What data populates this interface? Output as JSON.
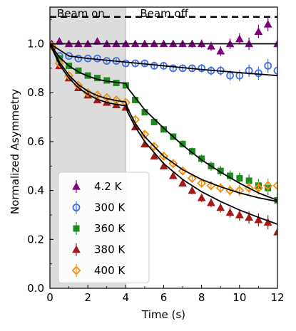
{
  "chart_data": {
    "type": "scatter",
    "xlabel": "Time (s)",
    "ylabel": "Normalized Asymmetry",
    "xlim": [
      0,
      12
    ],
    "ylim": [
      0.0,
      1.15
    ],
    "xticks": [
      0,
      2,
      4,
      6,
      8,
      10,
      12
    ],
    "yticks": [
      0.0,
      0.2,
      0.4,
      0.6,
      0.8,
      1.0
    ],
    "xtick_labels": [
      "0",
      "2",
      "4",
      "6",
      "8",
      "10",
      "12"
    ],
    "ytick_labels": [
      "0.0",
      "0.2",
      "0.4",
      "0.6",
      "0.8",
      "1.0"
    ],
    "regions": [
      {
        "label": "Beam on",
        "x": [
          0,
          4
        ],
        "color": "#dcdcdc"
      },
      {
        "label": "Beam off",
        "x": [
          4,
          12
        ],
        "color": "#ffffff"
      }
    ],
    "reference_lines": [
      {
        "y": 1.11,
        "style": "dashed",
        "color": "#000000"
      }
    ],
    "legend": {
      "position": "lower-left"
    },
    "grid": false,
    "series": [
      {
        "name": "4.2 K",
        "marker": "triangle",
        "color": "#800080",
        "filled": true,
        "x": [
          0.1,
          0.5,
          1,
          1.5,
          2,
          2.5,
          3,
          3.5,
          4,
          4.5,
          5,
          5.5,
          6,
          6.5,
          7,
          7.5,
          8,
          8.5,
          9,
          9.5,
          10,
          10.5,
          11,
          11.5,
          12
        ],
        "y": [
          1.0,
          1.01,
          1.0,
          1.0,
          1.0,
          1.01,
          1.0,
          1.0,
          1.0,
          1.0,
          1.0,
          1.0,
          1.0,
          1.0,
          1.0,
          1.0,
          1.0,
          0.99,
          0.97,
          1.0,
          1.02,
          1.0,
          1.05,
          1.08,
          1.0
        ],
        "fit": {
          "x": [
            0,
            12
          ],
          "y": [
            1.0,
            1.0
          ]
        }
      },
      {
        "name": "300 K",
        "marker": "circle",
        "color": "#3f6fe0",
        "filled": false,
        "x": [
          0.1,
          0.5,
          1,
          1.5,
          2,
          2.5,
          3,
          3.5,
          4,
          4.5,
          5,
          5.5,
          6,
          6.5,
          7,
          7.5,
          8,
          8.5,
          9,
          9.5,
          10,
          10.5,
          11,
          11.5,
          12
        ],
        "y": [
          0.99,
          0.95,
          0.95,
          0.94,
          0.94,
          0.94,
          0.93,
          0.93,
          0.92,
          0.92,
          0.92,
          0.91,
          0.91,
          0.9,
          0.9,
          0.9,
          0.9,
          0.89,
          0.89,
          0.87,
          0.87,
          0.89,
          0.88,
          0.91,
          0.89
        ],
        "fit": {
          "x": [
            0,
            1,
            2,
            4,
            6,
            8,
            10,
            12
          ],
          "y": [
            1.0,
            0.95,
            0.94,
            0.925,
            0.91,
            0.895,
            0.882,
            0.87
          ]
        }
      },
      {
        "name": "360 K",
        "marker": "square",
        "color": "#1f8b1f",
        "filled": true,
        "x": [
          0.1,
          0.5,
          1,
          1.5,
          2,
          2.5,
          3,
          3.5,
          4,
          4.5,
          5,
          5.5,
          6,
          6.5,
          7,
          7.5,
          8,
          8.5,
          9,
          9.5,
          10,
          10.5,
          11,
          11.5,
          12
        ],
        "y": [
          0.99,
          0.94,
          0.91,
          0.89,
          0.87,
          0.86,
          0.85,
          0.84,
          0.83,
          0.77,
          0.72,
          0.68,
          0.65,
          0.62,
          0.59,
          0.56,
          0.53,
          0.5,
          0.48,
          0.46,
          0.45,
          0.44,
          0.42,
          0.41,
          0.36
        ],
        "fit": {
          "x": [
            0,
            0.5,
            1,
            1.5,
            2,
            2.5,
            3,
            3.5,
            4,
            4.1,
            4.5,
            5,
            6,
            7,
            8,
            9,
            10,
            11,
            12
          ],
          "y": [
            1.0,
            0.945,
            0.91,
            0.885,
            0.868,
            0.855,
            0.847,
            0.842,
            0.838,
            0.82,
            0.78,
            0.73,
            0.655,
            0.585,
            0.525,
            0.475,
            0.43,
            0.39,
            0.36
          ]
        }
      },
      {
        "name": "380 K",
        "marker": "triangle",
        "color": "#a51818",
        "filled": true,
        "x": [
          0.1,
          0.5,
          1,
          1.5,
          2,
          2.5,
          3,
          3.5,
          4,
          4.5,
          5,
          5.5,
          6,
          6.5,
          7,
          7.5,
          8,
          8.5,
          9,
          9.5,
          10,
          10.5,
          11,
          11.5,
          12
        ],
        "y": [
          0.99,
          0.91,
          0.86,
          0.82,
          0.79,
          0.77,
          0.76,
          0.75,
          0.74,
          0.66,
          0.59,
          0.54,
          0.5,
          0.46,
          0.43,
          0.4,
          0.37,
          0.35,
          0.33,
          0.31,
          0.3,
          0.29,
          0.28,
          0.27,
          0.23
        ],
        "fit": {
          "x": [
            0,
            0.5,
            1,
            1.5,
            2,
            2.5,
            3,
            3.5,
            4,
            4.1,
            4.5,
            5,
            6,
            7,
            8,
            9,
            10,
            11,
            12
          ],
          "y": [
            1.0,
            0.915,
            0.86,
            0.82,
            0.793,
            0.773,
            0.76,
            0.752,
            0.747,
            0.72,
            0.66,
            0.6,
            0.51,
            0.445,
            0.395,
            0.355,
            0.32,
            0.29,
            0.262
          ]
        }
      },
      {
        "name": "400 K",
        "marker": "diamond",
        "color": "#f0900c",
        "filled": false,
        "x": [
          0.1,
          0.5,
          1,
          1.5,
          2,
          2.5,
          3,
          3.5,
          4,
          4.5,
          5,
          5.5,
          6,
          6.5,
          7,
          7.5,
          8,
          8.5,
          9,
          9.5,
          10,
          10.5,
          11,
          11.5,
          12
        ],
        "y": [
          0.99,
          0.92,
          0.87,
          0.83,
          0.8,
          0.79,
          0.78,
          0.77,
          0.76,
          0.69,
          0.63,
          0.58,
          0.54,
          0.51,
          0.48,
          0.45,
          0.43,
          0.42,
          0.41,
          0.4,
          0.4,
          0.41,
          0.41,
          0.42,
          0.42
        ],
        "fit": {
          "x": [
            0,
            0.5,
            1,
            1.5,
            2,
            2.5,
            3,
            3.5,
            4,
            4.1,
            4.5,
            5,
            6,
            7,
            8,
            9,
            10,
            11,
            12
          ],
          "y": [
            1.0,
            0.925,
            0.872,
            0.833,
            0.806,
            0.788,
            0.776,
            0.768,
            0.762,
            0.735,
            0.675,
            0.62,
            0.54,
            0.485,
            0.445,
            0.415,
            0.39,
            0.37,
            0.355
          ]
        }
      }
    ]
  }
}
